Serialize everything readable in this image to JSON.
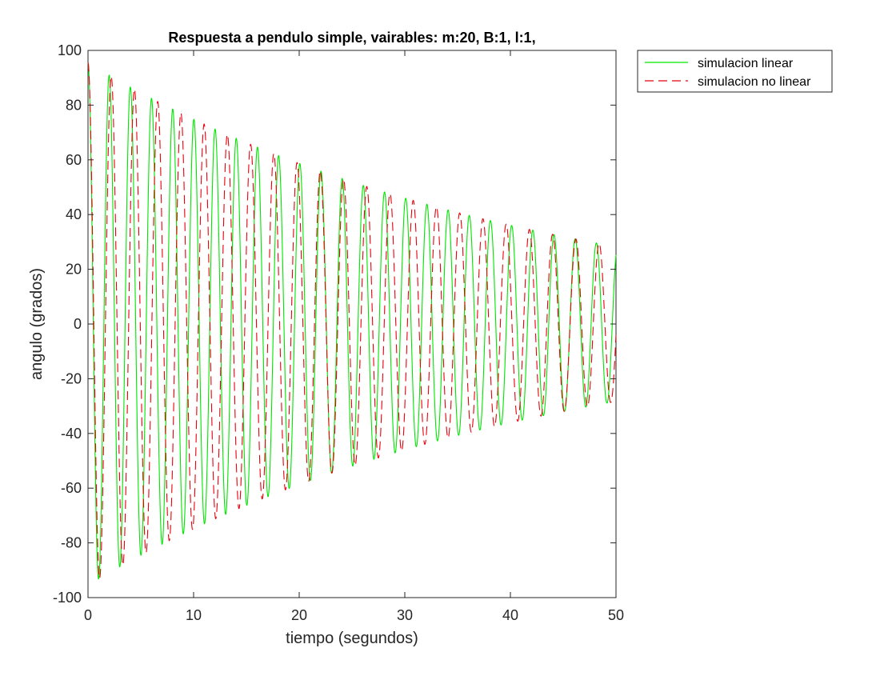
{
  "chart_data": {
    "type": "line",
    "title": "Respuesta a pendulo simple, vairables: m:20, B:1, l:1,",
    "xlabel": "tiempo (segundos)",
    "ylabel": "angulo (grados)",
    "xlim": [
      0,
      50
    ],
    "ylim": [
      -100,
      100
    ],
    "xticks": [
      0,
      10,
      20,
      30,
      40,
      50
    ],
    "yticks": [
      -100,
      -80,
      -60,
      -40,
      -20,
      0,
      20,
      40,
      60,
      80,
      100
    ],
    "grid": false,
    "legend_position": "outside-top-right",
    "sample_step": 0.02,
    "series": [
      {
        "name": "simulacion linear",
        "color": "#00e600",
        "style": "solid",
        "model": {
          "initial_deg": 95.5,
          "period_s": 2.006,
          "decay_per_s": 0.0243,
          "phase_rad": 0
        },
        "peaks": [
          {
            "x": 0,
            "y": 95.5
          },
          {
            "x": 2.0,
            "y": 90
          },
          {
            "x": 10.0,
            "y": 79
          },
          {
            "x": 20.1,
            "y": 58
          },
          {
            "x": 30.1,
            "y": 46
          },
          {
            "x": 40.1,
            "y": 36
          },
          {
            "x": 48.1,
            "y": 30
          }
        ]
      },
      {
        "name": "simulacion no linear",
        "color": "#e8000b",
        "style": "dashed",
        "model": {
          "initial_deg": 95.5,
          "period_s": 2.2,
          "decay_per_s": 0.0243,
          "phase_rad": 0
        },
        "peaks": [
          {
            "x": 0,
            "y": 95.5
          },
          {
            "x": 2.25,
            "y": 90
          },
          {
            "x": 11.3,
            "y": 72
          },
          {
            "x": 20.4,
            "y": 57
          },
          {
            "x": 29.4,
            "y": 47
          },
          {
            "x": 38.6,
            "y": 37
          },
          {
            "x": 49.5,
            "y": 26
          }
        ]
      }
    ]
  }
}
